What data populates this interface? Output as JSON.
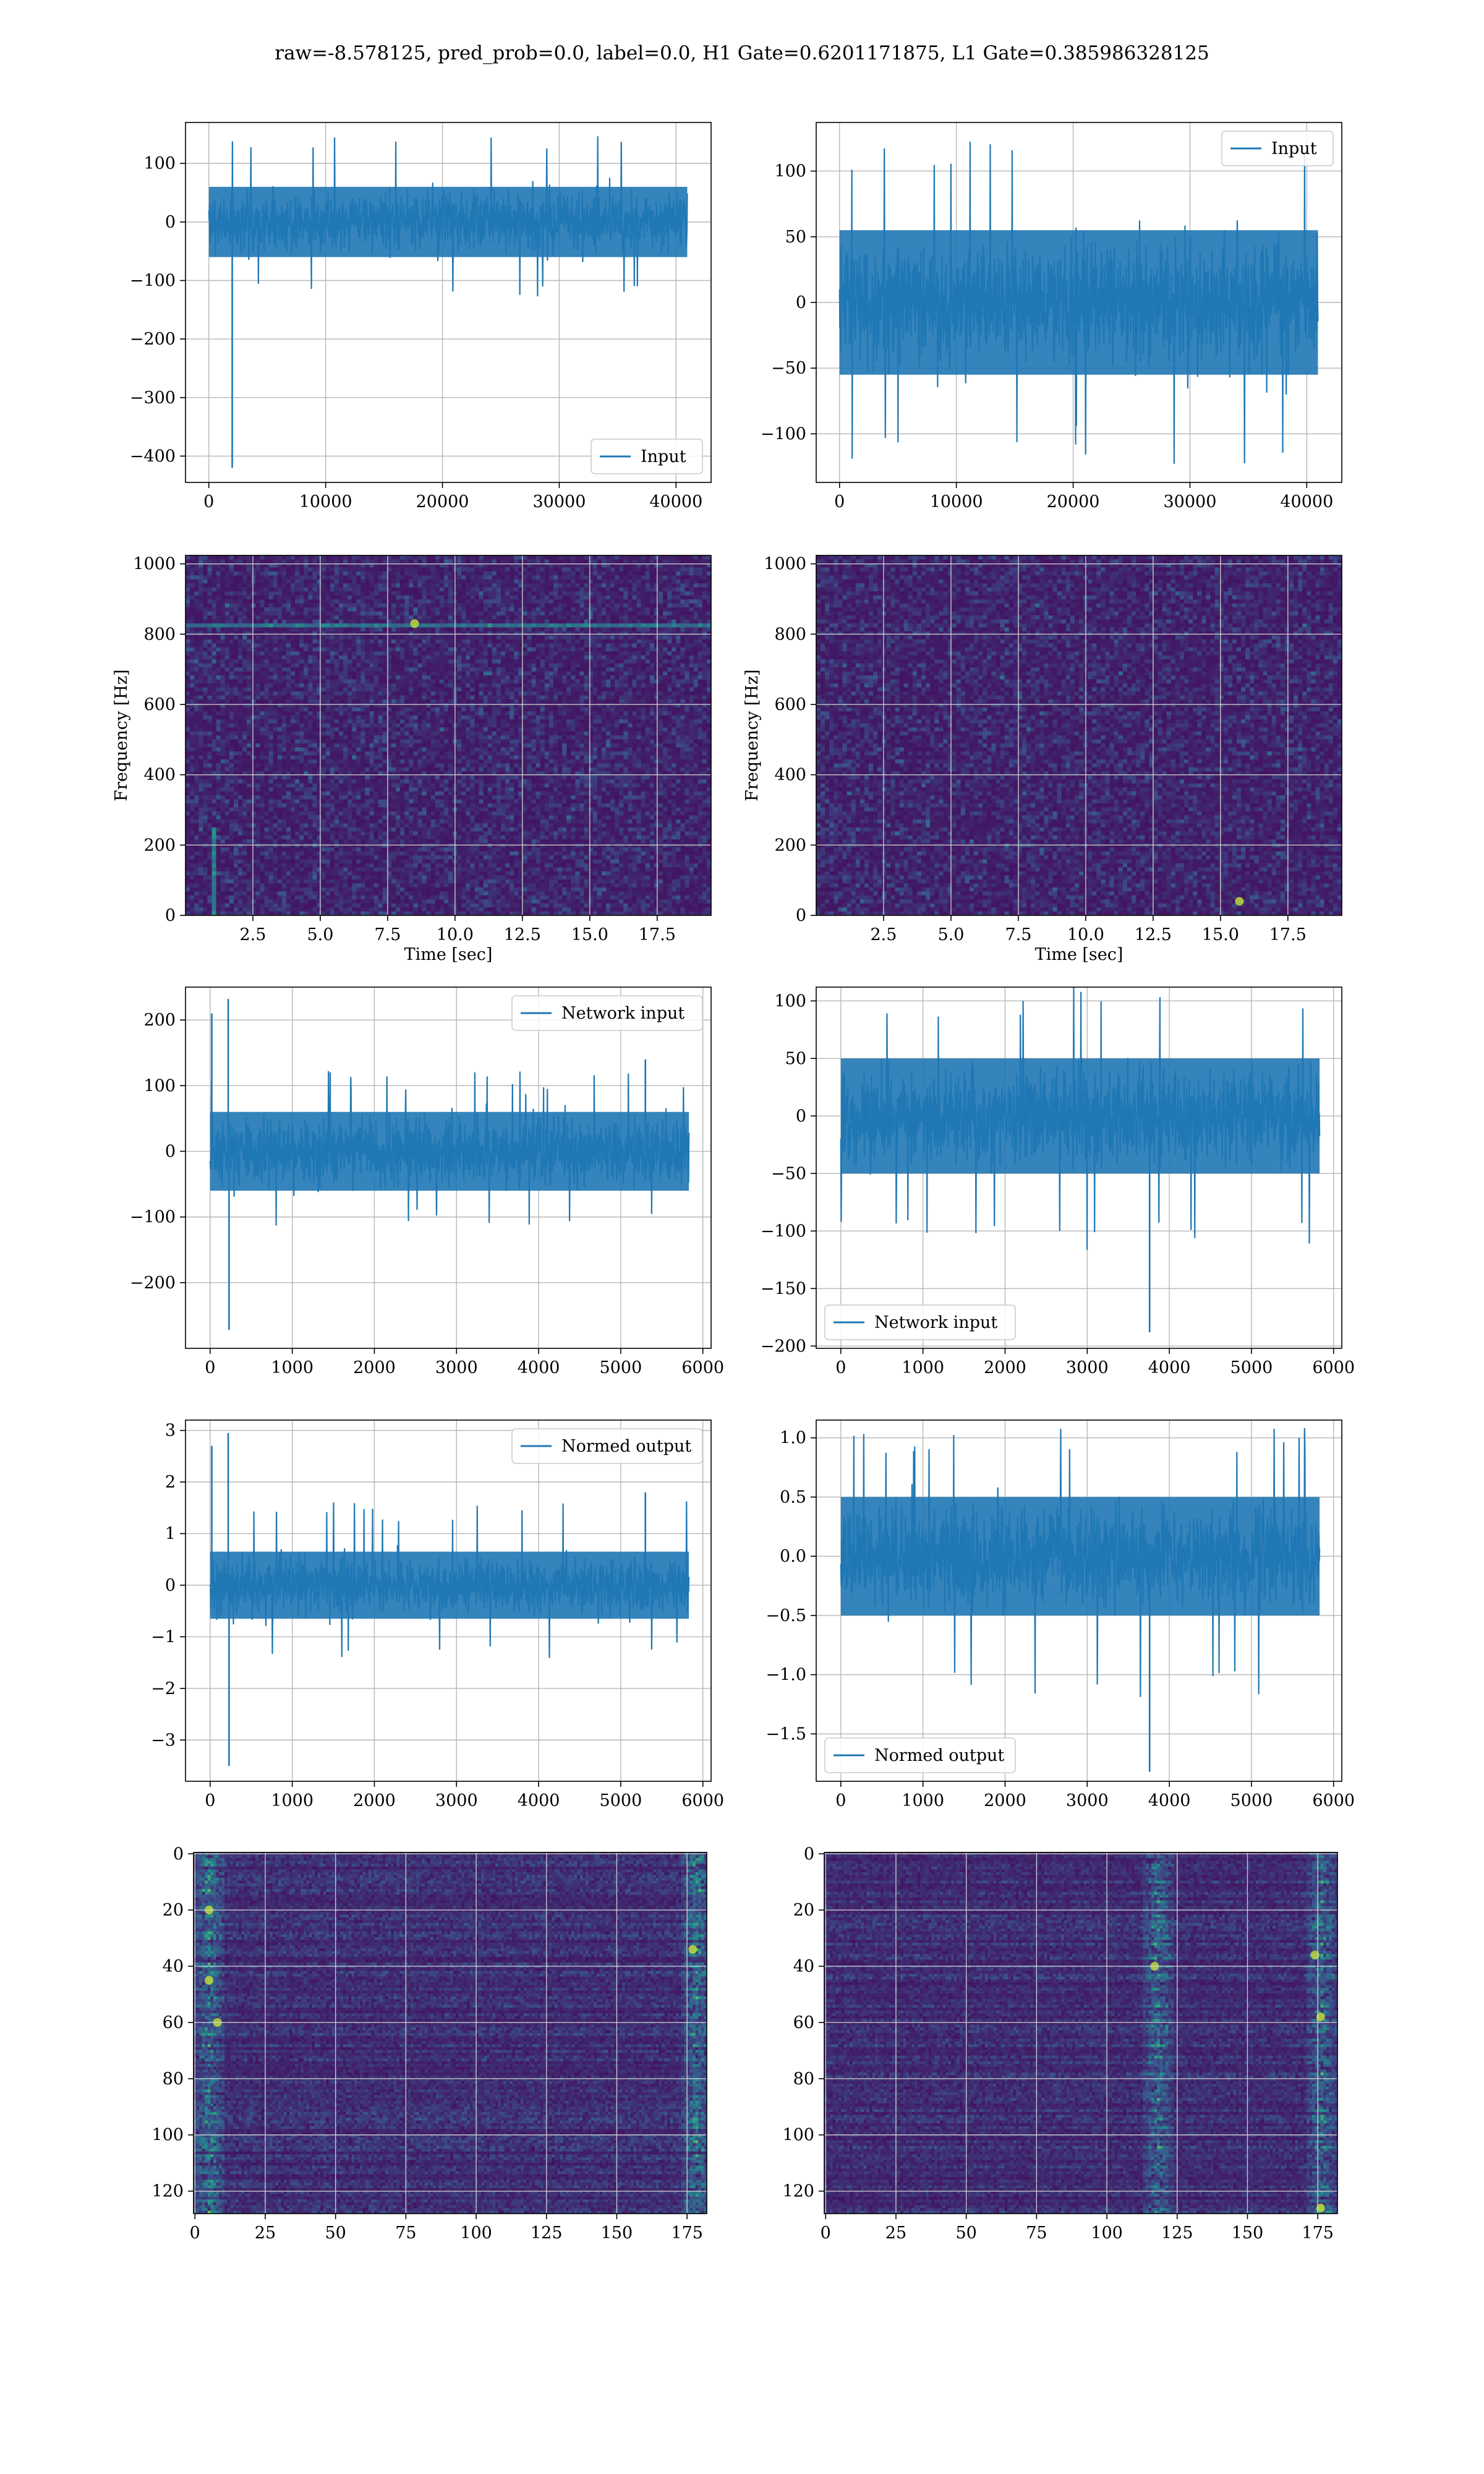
{
  "title": "raw=-8.578125, pred_prob=0.0, label=0.0, H1 Gate=0.6201171875, L1 Gate=0.385986328125",
  "colors": {
    "line": "#1f77b4",
    "grid": "#b0b0b0",
    "heat_low": "#440154",
    "heat_mid": "#21918c",
    "heat_high": "#fde725"
  },
  "chart_data": [
    {
      "id": "h1-input",
      "type": "line",
      "series": [
        {
          "name": "Input"
        }
      ],
      "xlim": [
        -2000,
        43000
      ],
      "ylim": [
        -445,
        170
      ],
      "xticks": [
        0,
        10000,
        20000,
        30000,
        40000
      ],
      "yticks": [
        100,
        0,
        -100,
        -200,
        -300,
        -400
      ],
      "xticklabels": [
        "0",
        "10000",
        "20000",
        "30000",
        "40000"
      ],
      "yticklabels": [
        "100",
        "0",
        "−100",
        "−200",
        "−300",
        "−400"
      ],
      "legend": "lower-right",
      "grid": true,
      "xlabel": "",
      "ylabel": "",
      "signal": {
        "x_end": 40960,
        "typical_amplitude": 60,
        "max": 150,
        "min": -135,
        "spikes": [
          {
            "x": 2000,
            "y": -420
          }
        ]
      }
    },
    {
      "id": "l1-input",
      "type": "line",
      "series": [
        {
          "name": "Input"
        }
      ],
      "xlim": [
        -2000,
        43000
      ],
      "ylim": [
        -137,
        137
      ],
      "xticks": [
        0,
        10000,
        20000,
        30000,
        40000
      ],
      "yticks": [
        100,
        50,
        0,
        -50,
        -100
      ],
      "xticklabels": [
        "0",
        "10000",
        "20000",
        "30000",
        "40000"
      ],
      "yticklabels": [
        "100",
        "50",
        "0",
        "−50",
        "−100"
      ],
      "legend": "upper-right",
      "grid": true,
      "xlabel": "",
      "ylabel": "",
      "signal": {
        "x_end": 40960,
        "typical_amplitude": 55,
        "max": 128,
        "min": -125,
        "spikes": []
      }
    },
    {
      "id": "h1-spectrogram",
      "type": "heatmap",
      "xlim": [
        0,
        19.5
      ],
      "ylim": [
        0,
        1024
      ],
      "xticks": [
        2.5,
        5.0,
        7.5,
        10.0,
        12.5,
        15.0,
        17.5
      ],
      "yticks": [
        0,
        200,
        400,
        600,
        800,
        1000
      ],
      "xticklabels": [
        "2.5",
        "5.0",
        "7.5",
        "10.0",
        "12.5",
        "15.0",
        "17.5"
      ],
      "yticklabels": [
        "0",
        "200",
        "400",
        "600",
        "800",
        "1000"
      ],
      "xlabel": "Time [sec]",
      "ylabel": "Frequency [Hz]",
      "grid": true,
      "features": {
        "horizontal_line_hz": 830,
        "vertical_transient_sec": 0.9,
        "hotspots": [
          {
            "x": 8.5,
            "y": 830
          }
        ]
      }
    },
    {
      "id": "l1-spectrogram",
      "type": "heatmap",
      "xlim": [
        0,
        19.5
      ],
      "ylim": [
        0,
        1024
      ],
      "xticks": [
        2.5,
        5.0,
        7.5,
        10.0,
        12.5,
        15.0,
        17.5
      ],
      "yticks": [
        0,
        200,
        400,
        600,
        800,
        1000
      ],
      "xticklabels": [
        "2.5",
        "5.0",
        "7.5",
        "10.0",
        "12.5",
        "15.0",
        "17.5"
      ],
      "yticklabels": [
        "0",
        "200",
        "400",
        "600",
        "800",
        "1000"
      ],
      "xlabel": "Time [sec]",
      "ylabel": "Frequency [Hz]",
      "grid": true,
      "features": {
        "horizontal_line_hz": null,
        "vertical_transient_sec": null,
        "hotspots": [
          {
            "x": 15.7,
            "y": 40
          }
        ]
      }
    },
    {
      "id": "h1-network-input",
      "type": "line",
      "series": [
        {
          "name": "Network input"
        }
      ],
      "xlim": [
        -300,
        6100
      ],
      "ylim": [
        -300,
        250
      ],
      "xticks": [
        0,
        1000,
        2000,
        3000,
        4000,
        5000,
        6000
      ],
      "yticks": [
        200,
        100,
        0,
        -100,
        -200
      ],
      "xticklabels": [
        "0",
        "1000",
        "2000",
        "3000",
        "4000",
        "5000",
        "6000"
      ],
      "yticklabels": [
        "200",
        "100",
        "0",
        "−100",
        "−200"
      ],
      "legend": "upper-right",
      "grid": true,
      "xlabel": "",
      "ylabel": "",
      "signal": {
        "x_end": 5830,
        "typical_amplitude": 60,
        "max": 125,
        "min": -115,
        "spikes": [
          {
            "x": 20,
            "y": 210
          },
          {
            "x": 220,
            "y": 232
          },
          {
            "x": 230,
            "y": -272
          },
          {
            "x": 5300,
            "y": 140
          }
        ]
      }
    },
    {
      "id": "l1-network-input",
      "type": "line",
      "series": [
        {
          "name": "Network input"
        }
      ],
      "xlim": [
        -300,
        6100
      ],
      "ylim": [
        -202,
        112
      ],
      "xticks": [
        0,
        1000,
        2000,
        3000,
        4000,
        5000,
        6000
      ],
      "yticks": [
        100,
        50,
        0,
        -50,
        -100,
        -150,
        -200
      ],
      "xticklabels": [
        "0",
        "1000",
        "2000",
        "3000",
        "4000",
        "5000",
        "6000"
      ],
      "yticklabels": [
        "100",
        "50",
        "0",
        "−50",
        "−100",
        "−150",
        "−200"
      ],
      "legend": "lower-left",
      "grid": true,
      "xlabel": "",
      "ylabel": "",
      "signal": {
        "x_end": 5830,
        "typical_amplitude": 50,
        "max": 115,
        "min": -120,
        "spikes": [
          {
            "x": 3760,
            "y": -188
          }
        ]
      }
    },
    {
      "id": "h1-normed-output",
      "type": "line",
      "series": [
        {
          "name": "Normed output"
        }
      ],
      "xlim": [
        -300,
        6100
      ],
      "ylim": [
        -3.8,
        3.2
      ],
      "xticks": [
        0,
        1000,
        2000,
        3000,
        4000,
        5000,
        6000
      ],
      "yticks": [
        3,
        2,
        1,
        0,
        -1,
        -2,
        -3
      ],
      "xticklabels": [
        "0",
        "1000",
        "2000",
        "3000",
        "4000",
        "5000",
        "6000"
      ],
      "yticklabels": [
        "3",
        "2",
        "1",
        "0",
        "−1",
        "−2",
        "−3"
      ],
      "legend": "upper-right",
      "grid": true,
      "xlabel": "",
      "ylabel": "",
      "signal": {
        "x_end": 5830,
        "typical_amplitude": 0.65,
        "max": 1.65,
        "min": -1.45,
        "spikes": [
          {
            "x": 20,
            "y": 2.7
          },
          {
            "x": 220,
            "y": 2.95
          },
          {
            "x": 230,
            "y": -3.5
          },
          {
            "x": 5300,
            "y": 1.8
          }
        ]
      }
    },
    {
      "id": "l1-normed-output",
      "type": "line",
      "series": [
        {
          "name": "Normed output"
        }
      ],
      "xlim": [
        -300,
        6100
      ],
      "ylim": [
        -1.9,
        1.15
      ],
      "xticks": [
        0,
        1000,
        2000,
        3000,
        4000,
        5000,
        6000
      ],
      "yticks": [
        1.0,
        0.5,
        0.0,
        -0.5,
        -1.0,
        -1.5
      ],
      "xticklabels": [
        "0",
        "1000",
        "2000",
        "3000",
        "4000",
        "5000",
        "6000"
      ],
      "yticklabels": [
        "1.0",
        "0.5",
        "0.0",
        "−0.5",
        "−1.0",
        "−1.5"
      ],
      "legend": "lower-left",
      "grid": true,
      "xlabel": "",
      "ylabel": "",
      "signal": {
        "x_end": 5830,
        "typical_amplitude": 0.5,
        "max": 1.12,
        "min": -1.2,
        "spikes": [
          {
            "x": 3760,
            "y": -1.82
          }
        ]
      }
    },
    {
      "id": "h1-feature-map",
      "type": "heatmap",
      "xlim": [
        -0.5,
        182
      ],
      "ylim": [
        128,
        -0.5
      ],
      "xticks": [
        0,
        25,
        50,
        75,
        100,
        125,
        150,
        175
      ],
      "yticks": [
        0,
        20,
        40,
        60,
        80,
        100,
        120
      ],
      "xticklabels": [
        "0",
        "25",
        "50",
        "75",
        "100",
        "125",
        "150",
        "175"
      ],
      "yticklabels": [
        "0",
        "20",
        "40",
        "60",
        "80",
        "100",
        "120"
      ],
      "xlabel": "",
      "ylabel": "",
      "grid": true,
      "features": {
        "bright_columns": [
          5,
          178
        ],
        "hotspots": [
          {
            "x": 177,
            "y": 34
          },
          {
            "x": 5,
            "y": 20
          },
          {
            "x": 5,
            "y": 45
          },
          {
            "x": 8,
            "y": 60
          }
        ]
      }
    },
    {
      "id": "l1-feature-map",
      "type": "heatmap",
      "xlim": [
        -0.5,
        182
      ],
      "ylim": [
        128,
        -0.5
      ],
      "xticks": [
        0,
        25,
        50,
        75,
        100,
        125,
        150,
        175
      ],
      "yticks": [
        0,
        20,
        40,
        60,
        80,
        100,
        120
      ],
      "xticklabels": [
        "0",
        "25",
        "50",
        "75",
        "100",
        "125",
        "150",
        "175"
      ],
      "yticklabels": [
        "0",
        "20",
        "40",
        "60",
        "80",
        "100",
        "120"
      ],
      "xlabel": "",
      "ylabel": "",
      "grid": true,
      "features": {
        "bright_columns": [
          118,
          176
        ],
        "hotspots": [
          {
            "x": 176,
            "y": 126
          },
          {
            "x": 176,
            "y": 58
          },
          {
            "x": 174,
            "y": 36
          },
          {
            "x": 117,
            "y": 40
          }
        ]
      }
    }
  ]
}
